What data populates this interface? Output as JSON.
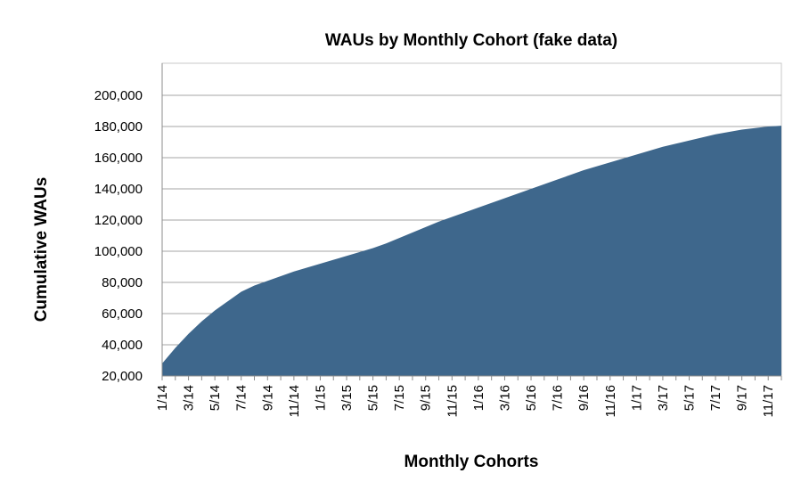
{
  "chart_data": {
    "type": "area",
    "title": "WAUs by Monthly Cohort (fake data)",
    "xlabel": "Monthly Cohorts",
    "ylabel": "Cumulative WAUs",
    "ylim": [
      20000,
      210000
    ],
    "yticks": [
      20000,
      40000,
      60000,
      80000,
      100000,
      120000,
      140000,
      160000,
      180000,
      200000
    ],
    "ytick_labels": [
      "20,000",
      "40,000",
      "60,000",
      "80,000",
      "100,000",
      "120,000",
      "140,000",
      "160,000",
      "180,000",
      "200,000"
    ],
    "grid": true,
    "legend": "none",
    "colors": {
      "area": "#3e678c",
      "grid": "#a6a6a6",
      "axis": "#8c8c8c",
      "frame": "#c8c8c8"
    },
    "categories": [
      "1/14",
      "2/14",
      "3/14",
      "4/14",
      "5/14",
      "6/14",
      "7/14",
      "8/14",
      "9/14",
      "10/14",
      "11/14",
      "12/14",
      "1/15",
      "2/15",
      "3/15",
      "4/15",
      "5/15",
      "6/15",
      "7/15",
      "8/15",
      "9/15",
      "10/15",
      "11/15",
      "12/15",
      "1/16",
      "2/16",
      "3/16",
      "4/16",
      "5/16",
      "6/16",
      "7/16",
      "8/16",
      "9/16",
      "10/16",
      "11/16",
      "12/16",
      "1/17",
      "2/17",
      "3/17",
      "4/17",
      "5/17",
      "6/17",
      "7/17",
      "8/17",
      "9/17",
      "10/17",
      "11/17",
      "12/17"
    ],
    "xtick_labels": [
      "1/14",
      "3/14",
      "5/14",
      "7/14",
      "9/14",
      "11/14",
      "1/15",
      "3/15",
      "5/15",
      "7/15",
      "9/15",
      "11/15",
      "1/16",
      "3/16",
      "5/16",
      "7/16",
      "9/16",
      "11/16",
      "1/17",
      "3/17",
      "5/17",
      "7/17",
      "9/17",
      "11/17"
    ],
    "series": [
      {
        "values": [
          28000,
          38000,
          47000,
          55000,
          62000,
          68000,
          74000,
          78000,
          81000,
          84000,
          87000,
          89500,
          92000,
          94500,
          97000,
          99500,
          102000,
          105000,
          108500,
          112000,
          115500,
          119000,
          122000,
          125000,
          128000,
          131000,
          134000,
          137000,
          140000,
          143000,
          146000,
          149000,
          152000,
          154500,
          157000,
          159500,
          162000,
          164500,
          167000,
          169000,
          171000,
          173000,
          175000,
          176500,
          178000,
          179000,
          180000,
          180500
        ]
      }
    ]
  }
}
